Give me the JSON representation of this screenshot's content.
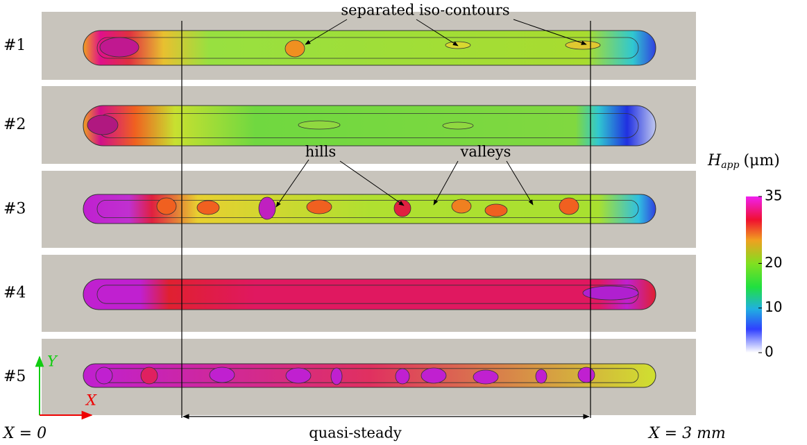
{
  "panels": [
    {
      "label": "#1"
    },
    {
      "label": "#2"
    },
    {
      "label": "#3"
    },
    {
      "label": "#4"
    },
    {
      "label": "#5"
    }
  ],
  "annotations": {
    "iso": "separated iso-contours",
    "hills": "hills",
    "valleys": "valleys",
    "steady": "quasi-steady",
    "start": "X = 0",
    "end": "X = 3 mm"
  },
  "axes": {
    "x": "X",
    "y": "Y"
  },
  "colorbar": {
    "symbol": "H",
    "subscript": "app",
    "unit": "(μm)",
    "lim": [
      0,
      35
    ],
    "ticks": [
      0,
      10,
      20,
      35
    ]
  }
}
